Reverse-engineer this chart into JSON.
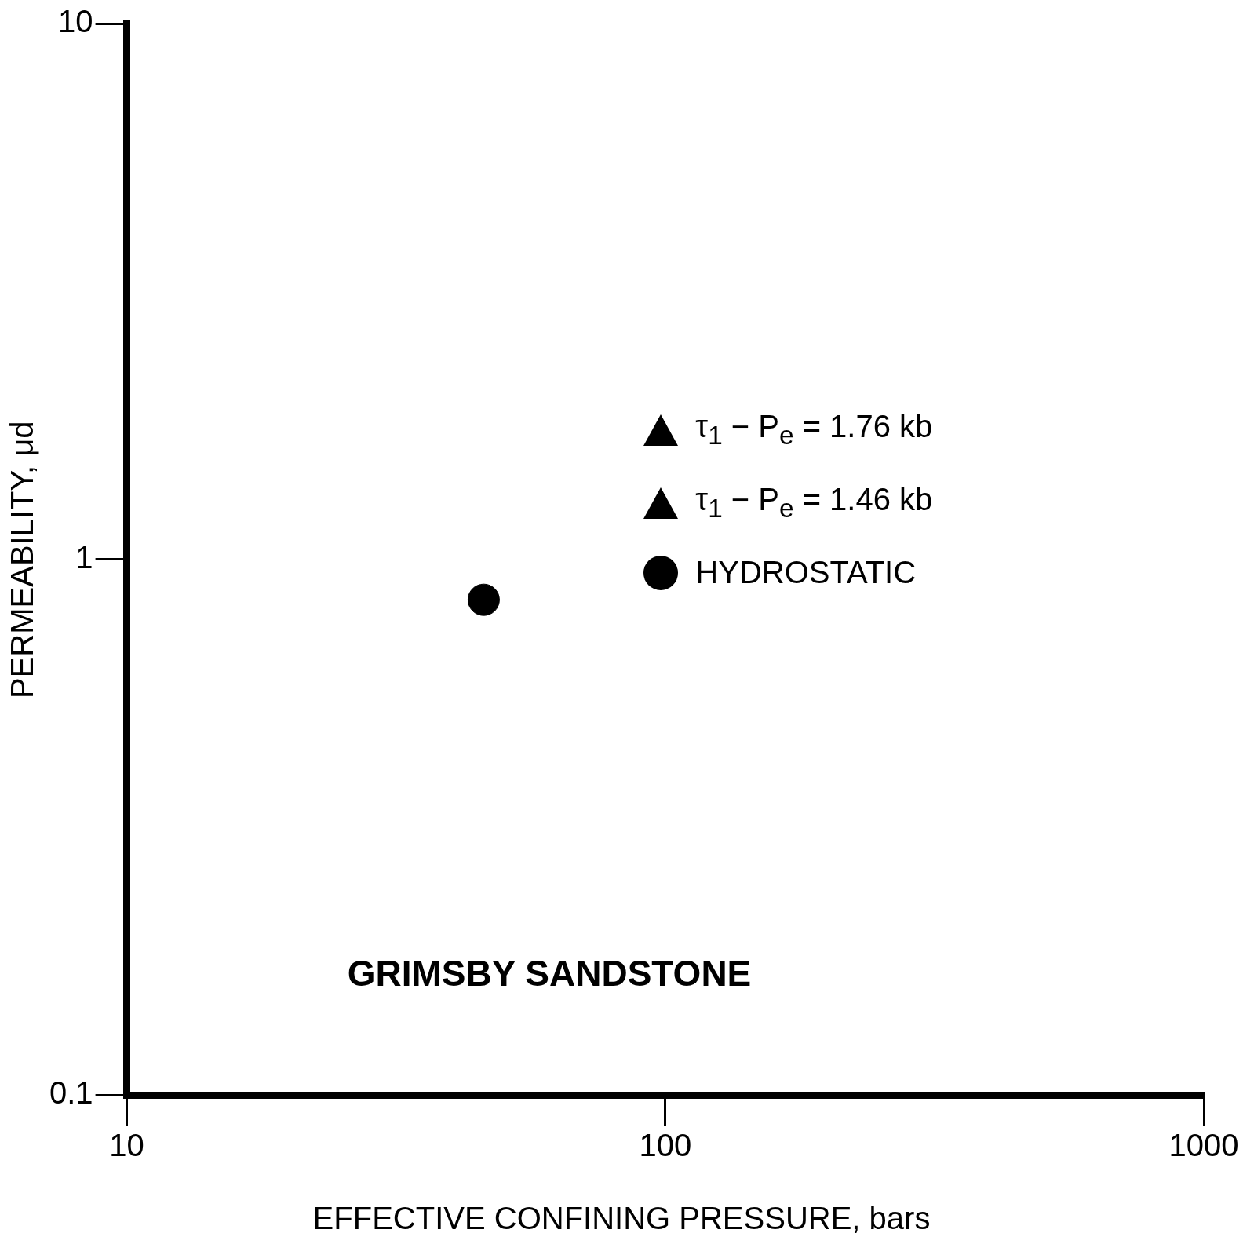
{
  "chart_data": {
    "type": "scatter",
    "xlabel": "EFFECTIVE CONFINING PRESSURE, bars",
    "ylabel": "PERMEABILITY, μd",
    "log": "xy",
    "xlim": [
      10,
      1000
    ],
    "xticks": [
      10,
      100,
      1000
    ],
    "ylim": [
      0.1,
      10
    ],
    "yticks": [
      10,
      1,
      {
        "value": 0.1,
        "label": "0.1"
      }
    ],
    "grid": false,
    "legend": "right",
    "series": [
      {
        "name": "τ$_{1}$ − P$_{e}$ = 1.76 kb",
        "color": "#000000",
        "marker": "triangle"
      },
      {
        "name": "τ$_{1}$ − P$_{e}$ = 1.46 kb",
        "color": "#000000",
        "marker": "triangle"
      },
      {
        "name": "HYDROSTATIC",
        "color": "#000000",
        "marker": "circle",
        "x": [
          46
        ],
        "values": [
          0.84
        ]
      }
    ],
    "annotations": [
      "GRIMSBY SANDSTONE"
    ]
  }
}
